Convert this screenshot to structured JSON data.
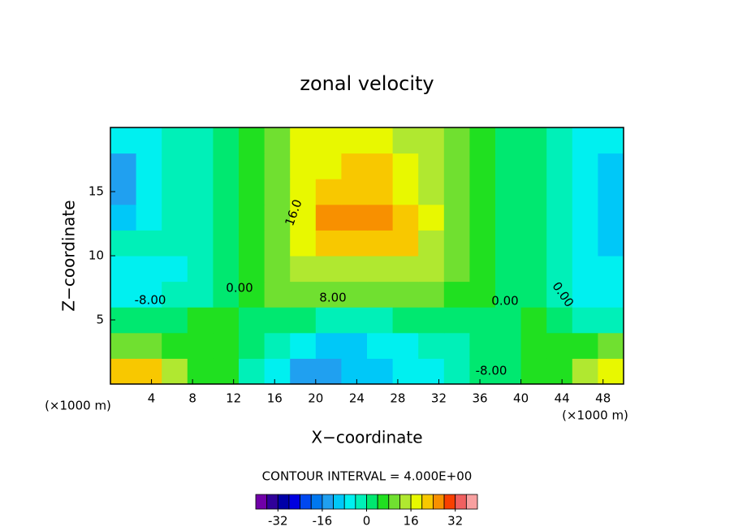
{
  "chart_data": {
    "type": "contour",
    "title": "zonal velocity",
    "x_label": "X−coordinate",
    "y_label": "Z−coordinate",
    "x_unit_left": "(×1000 m)",
    "x_unit_right": "(×1000 m)",
    "note": "CONTOUR INTERVAL = 4.000E+00",
    "xlim": [
      0,
      50
    ],
    "ylim": [
      0,
      20
    ],
    "xticks": [
      4,
      8,
      12,
      16,
      20,
      24,
      28,
      32,
      36,
      40,
      44,
      48
    ],
    "yticks": [
      5,
      10,
      15
    ],
    "x": [
      1.25,
      3.75,
      6.25,
      8.75,
      11.25,
      13.75,
      16.25,
      18.75,
      21.25,
      23.75,
      26.25,
      28.75,
      31.25,
      33.75,
      36.25,
      38.75,
      41.25,
      43.75,
      46.25,
      48.75
    ],
    "y": [
      1,
      3,
      5,
      7,
      9,
      11,
      13,
      15,
      17,
      19
    ],
    "z": [
      [
        22,
        20,
        14,
        6,
        4,
        -2,
        -8,
        -14,
        -16,
        -12,
        -10,
        -8,
        -6,
        -2,
        2,
        2,
        4,
        6,
        14,
        18
      ],
      [
        10,
        8,
        6,
        4,
        4,
        0,
        -4,
        -8,
        -10,
        -9,
        -8,
        -6,
        -4,
        -2,
        2,
        2,
        4,
        4,
        6,
        10
      ],
      [
        2,
        2,
        2,
        6,
        4,
        2,
        2,
        0,
        -2,
        -2,
        -1,
        0,
        2,
        2,
        2,
        2,
        4,
        2,
        -2,
        -4
      ],
      [
        -6,
        -6,
        -4,
        -2,
        2,
        6,
        10,
        10,
        10,
        10,
        10,
        10,
        10,
        6,
        4,
        2,
        2,
        -2,
        -6,
        -8
      ],
      [
        -6,
        -6,
        -6,
        -2,
        2,
        6,
        10,
        14,
        14,
        14,
        14,
        14,
        12,
        8,
        4,
        2,
        2,
        -2,
        -6,
        -8
      ],
      [
        -4,
        -4,
        -4,
        -2,
        2,
        6,
        10,
        18,
        22,
        22,
        22,
        20,
        14,
        10,
        6,
        2,
        2,
        -2,
        -6,
        -10
      ],
      [
        -10,
        -6,
        -4,
        -2,
        2,
        4,
        8,
        18,
        25,
        26,
        24,
        20,
        16,
        10,
        6,
        2,
        2,
        -2,
        -6,
        -12
      ],
      [
        -14,
        -8,
        -4,
        -2,
        2,
        4,
        8,
        16,
        20,
        22,
        22,
        18,
        14,
        10,
        6,
        2,
        2,
        -2,
        -6,
        -12
      ],
      [
        -14,
        -8,
        -4,
        -2,
        2,
        4,
        10,
        18,
        18,
        22,
        20,
        16,
        12,
        8,
        6,
        2,
        2,
        -2,
        -6,
        -10
      ],
      [
        -6,
        -6,
        -4,
        -2,
        2,
        4,
        10,
        18,
        18,
        18,
        16,
        14,
        12,
        8,
        6,
        2,
        2,
        -2,
        -6,
        -6
      ]
    ],
    "contour_labels": [
      "16.0",
      "0.00",
      "8.00",
      "-8.00",
      "0.00",
      "0.00",
      "-8.00"
    ],
    "colorbar_lim": [
      -40,
      40
    ],
    "colorbar_ticks": [
      -32,
      -16,
      0,
      16,
      32
    ],
    "colors": [
      "#7000a8",
      "#30009a",
      "#0000a8",
      "#0000e0",
      "#0048f0",
      "#0078f0",
      "#20a0f0",
      "#00c8f8",
      "#00f0f0",
      "#00f0b8",
      "#00e870",
      "#20e020",
      "#70e030",
      "#b0e830",
      "#e8f800",
      "#f8c800",
      "#f89000",
      "#f84000",
      "#f06060",
      "#f8a0a0"
    ]
  }
}
